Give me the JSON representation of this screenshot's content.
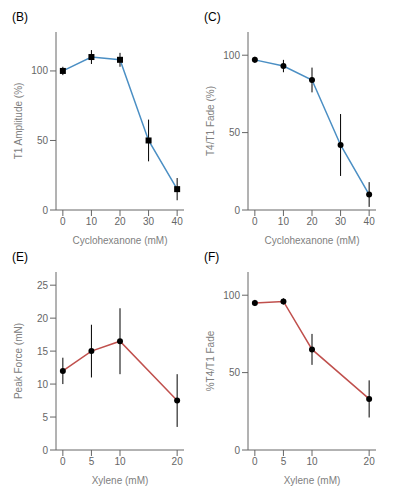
{
  "chart_data": [
    {
      "type": "line",
      "title": "(B)",
      "x": [
        0,
        10,
        20,
        30,
        40
      ],
      "values": [
        100,
        110,
        108,
        50,
        15
      ],
      "yerr": [
        3,
        5,
        5,
        15,
        8
      ],
      "xlabel": "Cyclohexanone (mM)",
      "ylabel": "T1 Amplitude (%)",
      "xlim": [
        -2.4,
        42.4
      ],
      "ylim": [
        0,
        128
      ],
      "xticks": [
        0,
        10,
        20,
        30,
        40
      ],
      "yticks": [
        0,
        50,
        100
      ],
      "color": "#4B8FC4",
      "marker": "square"
    },
    {
      "type": "line",
      "title": "(C)",
      "x": [
        0,
        10,
        20,
        30,
        40
      ],
      "values": [
        97,
        93,
        84,
        42,
        10
      ],
      "yerr": [
        2,
        4,
        8,
        20,
        8
      ],
      "xlabel": "Cyclohexanone (mM)",
      "ylabel": "T4/T1 Fade (%)",
      "xlim": [
        -2.4,
        42.4
      ],
      "ylim": [
        0,
        115
      ],
      "xticks": [
        0,
        10,
        20,
        30,
        40
      ],
      "yticks": [
        0,
        50,
        100
      ],
      "color": "#4B8FC4",
      "marker": "circle"
    },
    {
      "type": "line",
      "title": "(E)",
      "x": [
        0,
        5,
        10,
        20
      ],
      "values": [
        12,
        15,
        16.5,
        7.5
      ],
      "yerr": [
        2,
        4,
        5,
        4
      ],
      "xlabel": "Xylene (mM)",
      "ylabel": "Peak Force (mN)",
      "xlim": [
        -1.2,
        21.2
      ],
      "ylim": [
        0,
        27
      ],
      "xticks": [
        0,
        5,
        10,
        20
      ],
      "yticks": [
        0,
        5,
        10,
        15,
        20,
        25
      ],
      "color": "#C0504D",
      "marker": "circle"
    },
    {
      "type": "line",
      "title": "(F)",
      "x": [
        0,
        5,
        10,
        20
      ],
      "values": [
        95,
        96,
        65,
        33
      ],
      "yerr": [
        2,
        2,
        10,
        12
      ],
      "xlabel": "Xylene (mM)",
      "ylabel": "%T4/T1 Fade",
      "xlim": [
        -1.2,
        21.2
      ],
      "ylim": [
        0,
        115
      ],
      "xticks": [
        0,
        5,
        10,
        20
      ],
      "yticks": [
        0,
        50,
        100
      ],
      "color": "#C0504D",
      "marker": "circle"
    }
  ]
}
